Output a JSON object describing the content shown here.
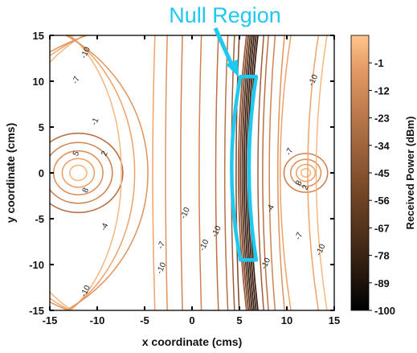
{
  "chart_data": {
    "type": "contour",
    "xlabel": "x coordinate (cms)",
    "ylabel": "y coordinate (cms)",
    "xlim": [
      -15,
      15
    ],
    "ylim": [
      -15,
      15
    ],
    "xticks": [
      -15,
      -10,
      -5,
      0,
      5,
      10,
      15
    ],
    "yticks": [
      15,
      10,
      5,
      0,
      -5,
      -10,
      -15
    ],
    "grid": false,
    "colorbar": {
      "label": "Received Power (dBm)",
      "range": [
        -100,
        10
      ],
      "ticks": [
        -1,
        -12,
        -23,
        -34,
        -45,
        -56,
        -67,
        -78,
        -89,
        -100
      ],
      "colors": [
        "#000000",
        "#3a2414",
        "#7a4a2a",
        "#b8774a",
        "#e59b66",
        "#ffc68a"
      ]
    },
    "sources": [
      {
        "x": -12,
        "y": 0
      },
      {
        "x": 12,
        "y": 0
      }
    ],
    "null_region": {
      "x_center": 5.5,
      "y_range": [
        -9.5,
        10.5
      ]
    },
    "contour_labels": [
      "-10",
      "-7",
      "-1",
      "5",
      "2",
      "8",
      "-4",
      "-10",
      "-7",
      "-10",
      "-10",
      "-10",
      "-10",
      "-10",
      "-7",
      "-4",
      "8",
      "2",
      "-7",
      "-10",
      "-10"
    ],
    "annotation": {
      "text": "Null Region",
      "color": "#1ec8ef"
    }
  }
}
